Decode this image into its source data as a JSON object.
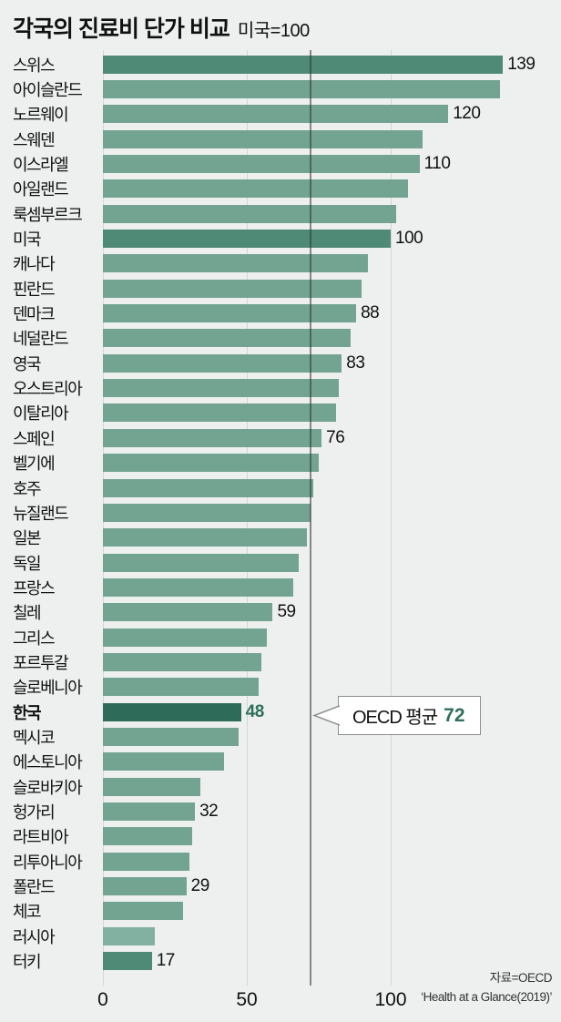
{
  "header": {
    "title": "각국의 진료비 단가 비교",
    "subtitle": "미국=100"
  },
  "chart_data": {
    "type": "bar",
    "orientation": "horizontal",
    "title": "각국의 진료비 단가 비교",
    "subtitle": "미국=100",
    "xlabel": "",
    "ylabel": "",
    "xlim": [
      0,
      159
    ],
    "xticks": [
      0,
      50,
      100
    ],
    "grid": "vertical",
    "reference_line": {
      "value": 72,
      "label": "OECD 평균",
      "value_label": "72"
    },
    "bars": [
      {
        "category": "스위스",
        "value": 139,
        "show_value": true,
        "tone": "dark"
      },
      {
        "category": "아이슬란드",
        "value": 138,
        "show_value": false,
        "tone": "normal"
      },
      {
        "category": "노르웨이",
        "value": 120,
        "show_value": true,
        "tone": "normal"
      },
      {
        "category": "스웨덴",
        "value": 111,
        "show_value": false,
        "tone": "normal"
      },
      {
        "category": "이스라엘",
        "value": 110,
        "show_value": true,
        "tone": "normal"
      },
      {
        "category": "아일랜드",
        "value": 106,
        "show_value": false,
        "tone": "normal"
      },
      {
        "category": "룩셈부르크",
        "value": 102,
        "show_value": false,
        "tone": "normal"
      },
      {
        "category": "미국",
        "value": 100,
        "show_value": true,
        "tone": "dark"
      },
      {
        "category": "캐나다",
        "value": 92,
        "show_value": false,
        "tone": "normal"
      },
      {
        "category": "핀란드",
        "value": 90,
        "show_value": false,
        "tone": "normal"
      },
      {
        "category": "덴마크",
        "value": 88,
        "show_value": true,
        "tone": "normal"
      },
      {
        "category": "네덜란드",
        "value": 86,
        "show_value": false,
        "tone": "normal"
      },
      {
        "category": "영국",
        "value": 83,
        "show_value": true,
        "tone": "normal"
      },
      {
        "category": "오스트리아",
        "value": 82,
        "show_value": false,
        "tone": "normal"
      },
      {
        "category": "이탈리아",
        "value": 81,
        "show_value": false,
        "tone": "normal"
      },
      {
        "category": "스페인",
        "value": 76,
        "show_value": true,
        "tone": "normal"
      },
      {
        "category": "벨기에",
        "value": 75,
        "show_value": false,
        "tone": "normal"
      },
      {
        "category": "호주",
        "value": 73,
        "show_value": false,
        "tone": "normal"
      },
      {
        "category": "뉴질랜드",
        "value": 72,
        "show_value": false,
        "tone": "normal"
      },
      {
        "category": "일본",
        "value": 71,
        "show_value": false,
        "tone": "normal"
      },
      {
        "category": "독일",
        "value": 68,
        "show_value": false,
        "tone": "normal"
      },
      {
        "category": "프랑스",
        "value": 66,
        "show_value": false,
        "tone": "normal"
      },
      {
        "category": "칠레",
        "value": 59,
        "show_value": true,
        "tone": "normal"
      },
      {
        "category": "그리스",
        "value": 57,
        "show_value": false,
        "tone": "normal"
      },
      {
        "category": "포르투갈",
        "value": 55,
        "show_value": false,
        "tone": "normal"
      },
      {
        "category": "슬로베니아",
        "value": 54,
        "show_value": false,
        "tone": "normal"
      },
      {
        "category": "한국",
        "value": 48,
        "show_value": true,
        "tone": "darkest"
      },
      {
        "category": "멕시코",
        "value": 47,
        "show_value": false,
        "tone": "normal"
      },
      {
        "category": "에스토니아",
        "value": 42,
        "show_value": false,
        "tone": "normal"
      },
      {
        "category": "슬로바키아",
        "value": 34,
        "show_value": false,
        "tone": "normal"
      },
      {
        "category": "헝가리",
        "value": 32,
        "show_value": true,
        "tone": "normal"
      },
      {
        "category": "라트비아",
        "value": 31,
        "show_value": false,
        "tone": "normal"
      },
      {
        "category": "리투아니아",
        "value": 30,
        "show_value": false,
        "tone": "normal"
      },
      {
        "category": "폴란드",
        "value": 29,
        "show_value": true,
        "tone": "normal"
      },
      {
        "category": "체코",
        "value": 28,
        "show_value": false,
        "tone": "normal"
      },
      {
        "category": "러시아",
        "value": 18,
        "show_value": false,
        "tone": "light"
      },
      {
        "category": "터키",
        "value": 17,
        "show_value": true,
        "tone": "dark"
      }
    ],
    "source_line1": "자료=OECD",
    "source_line2": "‘Health at a Glance(2019)’",
    "colors": {
      "background": "#edf0ee",
      "bar_normal": "#73a492",
      "bar_dark": "#4f8a77",
      "bar_darkest": "#2e6b58",
      "bar_light": "#82b1a1",
      "accent_text": "#2e7059",
      "grid_light": "#d2d7d4",
      "grid_dark": "#2d3330",
      "text": "#111111"
    }
  }
}
